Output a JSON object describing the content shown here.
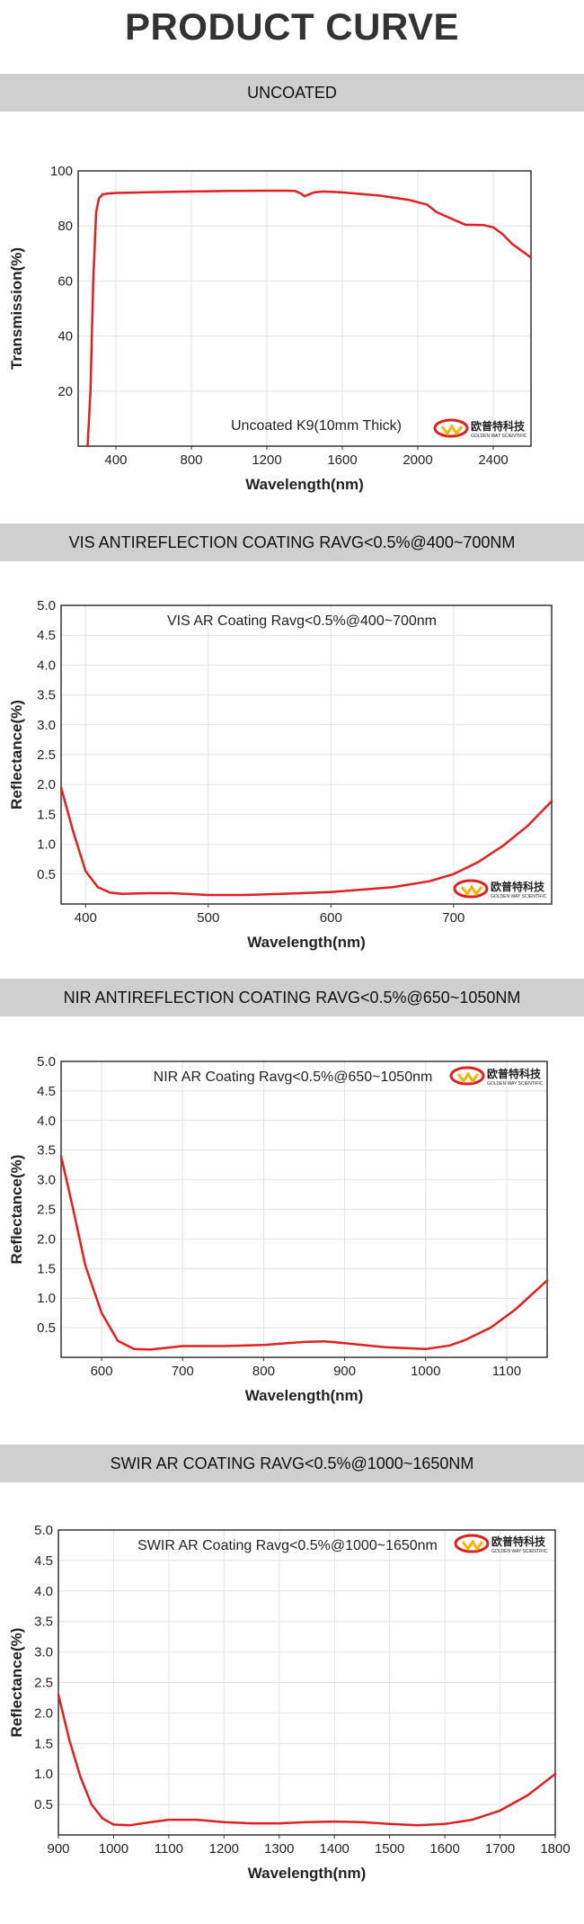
{
  "header": {
    "title": "PRODUCT CURVE"
  },
  "sections": [
    {
      "title": "UNCOATED"
    },
    {
      "title": "VIS ANTIREFLECTION COATING RAVG<0.5%@400~700NM"
    },
    {
      "title": "NIR ANTIREFLECTION COATING RAVG<0.5%@650~1050NM"
    },
    {
      "title": "SWIR AR COATING RAVG<0.5%@1000~1650NM"
    }
  ],
  "logo": {
    "text": "欧普特科技",
    "subtext": "GOLDEN WAY SCIENTIFIC",
    "color": "#e02020"
  },
  "chart_data": [
    {
      "type": "line",
      "annotation": "Uncoated K9(10mm Thick)",
      "xlabel": "Wavelength(nm)",
      "ylabel": "Transmission(%)",
      "xlim": [
        200,
        2600
      ],
      "ylim": [
        0,
        100
      ],
      "xticks": [
        400,
        800,
        1200,
        1600,
        2000,
        2400
      ],
      "yticks": [
        20,
        40,
        60,
        80,
        100
      ],
      "grid": true,
      "color": "#e02020",
      "series": [
        {
          "x": [
            250,
            265,
            280,
            295,
            310,
            330,
            360,
            400,
            600,
            800,
            900,
            1000,
            1200,
            1300,
            1350,
            1380,
            1400,
            1450,
            1500,
            1600,
            1800,
            1950,
            2050,
            2100,
            2150,
            2200,
            2250,
            2300,
            2350,
            2400,
            2450,
            2500,
            2550,
            2600
          ],
          "y": [
            0,
            20,
            60,
            85,
            90,
            91.5,
            91.8,
            92,
            92.3,
            92.5,
            92.6,
            92.7,
            92.8,
            92.8,
            92.7,
            91.8,
            90.8,
            92.2,
            92.5,
            92.2,
            91,
            89.5,
            87.7,
            85,
            83.5,
            82,
            80.5,
            80.4,
            80.3,
            79.5,
            77,
            73.5,
            71,
            68.5
          ]
        }
      ]
    },
    {
      "type": "line",
      "annotation": "VIS AR Coating Ravg<0.5%@400~700nm",
      "xlabel": "Wavelength(nm)",
      "ylabel": "Reflectance(%)",
      "xlim": [
        380,
        780
      ],
      "ylim": [
        0,
        5
      ],
      "xticks": [
        400,
        500,
        600,
        700
      ],
      "yticks": [
        0.5,
        1.0,
        1.5,
        2.0,
        2.5,
        3.0,
        3.5,
        4.0,
        4.5,
        5.0
      ],
      "grid": true,
      "color": "#e02020",
      "series": [
        {
          "x": [
            380,
            390,
            400,
            410,
            420,
            430,
            450,
            470,
            500,
            530,
            560,
            600,
            650,
            680,
            700,
            720,
            740,
            760,
            780
          ],
          "y": [
            1.95,
            1.2,
            0.55,
            0.28,
            0.19,
            0.17,
            0.18,
            0.18,
            0.15,
            0.15,
            0.17,
            0.2,
            0.28,
            0.38,
            0.5,
            0.7,
            0.97,
            1.3,
            1.72
          ]
        }
      ]
    },
    {
      "type": "line",
      "annotation": "NIR AR Coating Ravg<0.5%@650~1050nm",
      "xlabel": "Wavelength(nm)",
      "ylabel": "Reflectance(%)",
      "xlim": [
        550,
        1150
      ],
      "ylim": [
        0,
        5
      ],
      "xticks": [
        600,
        700,
        800,
        900,
        1000,
        1100
      ],
      "yticks": [
        0.5,
        1.0,
        1.5,
        2.0,
        2.5,
        3.0,
        3.5,
        4.0,
        4.5,
        5.0
      ],
      "grid": true,
      "color": "#e02020",
      "series": [
        {
          "x": [
            550,
            565,
            580,
            600,
            620,
            640,
            660,
            700,
            750,
            800,
            850,
            875,
            900,
            950,
            1000,
            1030,
            1050,
            1080,
            1110,
            1130,
            1150
          ],
          "y": [
            3.4,
            2.5,
            1.55,
            0.75,
            0.28,
            0.14,
            0.13,
            0.19,
            0.19,
            0.21,
            0.26,
            0.27,
            0.24,
            0.17,
            0.14,
            0.2,
            0.3,
            0.5,
            0.8,
            1.05,
            1.3
          ]
        }
      ]
    },
    {
      "type": "line",
      "annotation": "SWIR AR Coating Ravg<0.5%@1000~1650nm",
      "xlabel": "Wavelength(nm)",
      "ylabel": "Reflectance(%)",
      "xlim": [
        900,
        1800
      ],
      "ylim": [
        0,
        5
      ],
      "xticks": [
        900,
        1000,
        1100,
        1200,
        1300,
        1400,
        1500,
        1600,
        1700,
        1800
      ],
      "yticks": [
        0.5,
        1.0,
        1.5,
        2.0,
        2.5,
        3.0,
        3.5,
        4.0,
        4.5,
        5.0
      ],
      "grid": true,
      "color": "#e02020",
      "series": [
        {
          "x": [
            900,
            920,
            940,
            960,
            980,
            1000,
            1030,
            1060,
            1100,
            1150,
            1200,
            1250,
            1300,
            1350,
            1400,
            1450,
            1500,
            1550,
            1600,
            1650,
            1700,
            1750,
            1800
          ],
          "y": [
            2.3,
            1.55,
            0.95,
            0.5,
            0.27,
            0.17,
            0.16,
            0.2,
            0.25,
            0.25,
            0.21,
            0.19,
            0.19,
            0.21,
            0.22,
            0.21,
            0.18,
            0.16,
            0.18,
            0.25,
            0.4,
            0.65,
            1.0
          ]
        }
      ]
    }
  ]
}
